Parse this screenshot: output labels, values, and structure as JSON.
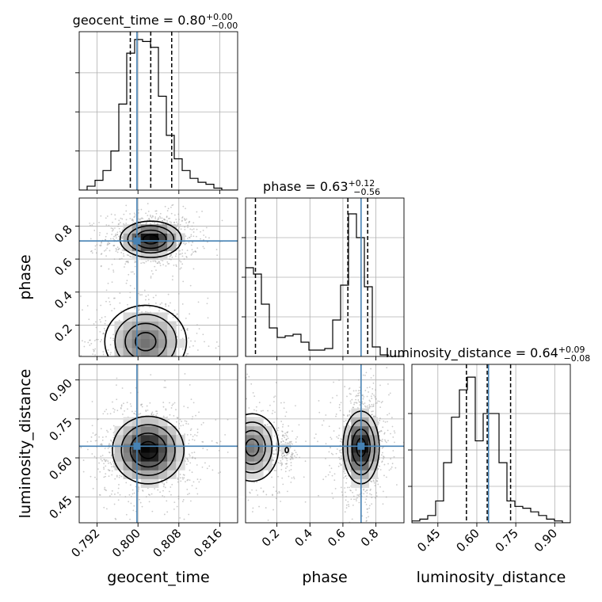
{
  "chart_data": {
    "type": "corner",
    "parameters": [
      {
        "name": "geocent_time",
        "label": "geocent_time",
        "range": [
          0.7885,
          0.8195
        ],
        "ticks": [
          0.792,
          0.8,
          0.808,
          0.816
        ],
        "tick_labels": [
          "0.792",
          "0.800",
          "0.808",
          "0.816"
        ],
        "truth": 0.7998,
        "quantiles": [
          0.7985,
          0.8025,
          0.8066
        ],
        "title": {
          "name": "geocent_time",
          "median": "0.80",
          "plus": "+0.00",
          "minus": "−0.00"
        },
        "hist": {
          "edges_from": 0.7885,
          "bin_width": 0.00155,
          "counts": [
            0,
            2,
            5,
            10,
            20,
            44,
            70,
            77,
            76,
            73,
            48,
            28,
            16,
            10,
            6,
            4,
            3,
            1,
            0,
            0
          ],
          "ymax": 81,
          "yticks": [
            20,
            40,
            60
          ]
        }
      },
      {
        "name": "phase",
        "label": "phase",
        "range": [
          0.01,
          0.97
        ],
        "ticks": [
          0.2,
          0.4,
          0.6,
          0.8
        ],
        "tick_labels": [
          "0.2",
          "0.4",
          "0.6",
          "0.8"
        ],
        "truth": 0.71,
        "quantiles": [
          0.07,
          0.63,
          0.75
        ],
        "title": {
          "name": "phase",
          "median": "0.63",
          "plus": "+0.12",
          "minus": "−0.56"
        },
        "hist": {
          "edges_from": 0.01,
          "bin_width": 0.048,
          "counts": [
            56,
            52,
            33,
            18,
            12,
            13,
            14,
            9,
            4,
            4,
            5,
            23,
            45,
            90,
            75,
            44,
            6,
            1,
            0,
            0
          ],
          "ymax": 100,
          "yticks": [
            25,
            50,
            75
          ]
        }
      },
      {
        "name": "luminosity_distance",
        "label": "luminosity_distance",
        "range": [
          0.35,
          0.96
        ],
        "ticks": [
          0.45,
          0.6,
          0.75,
          0.9
        ],
        "tick_labels": [
          "0.45",
          "0.60",
          "0.75",
          "0.90"
        ],
        "truth": 0.645,
        "quantiles": [
          0.56,
          0.64,
          0.73
        ],
        "title": {
          "name": "luminosity_distance",
          "median": "0.64",
          "plus": "+0.09",
          "minus": "−0.08"
        },
        "hist": {
          "edges_from": 0.35,
          "bin_width": 0.0305,
          "counts": [
            1,
            2,
            4,
            12,
            33,
            58,
            73,
            80,
            45,
            60,
            60,
            33,
            12,
            9,
            8,
            6,
            4,
            2,
            1,
            0
          ],
          "ymax": 87,
          "yticks": [
            20,
            40,
            60
          ]
        }
      }
    ],
    "pairs": [
      {
        "row": 1,
        "col": 0,
        "modes": [
          {
            "cx": 0.8025,
            "cy": 0.72,
            "sx": 0.003,
            "sy": 0.055,
            "w": 1.0
          },
          {
            "cx": 0.8015,
            "cy": 0.1,
            "sx": 0.004,
            "sy": 0.11,
            "w": 0.55
          }
        ]
      },
      {
        "row": 2,
        "col": 0,
        "modes": [
          {
            "cx": 0.802,
            "cy": 0.63,
            "sx": 0.0035,
            "sy": 0.065,
            "w": 1.0
          }
        ]
      },
      {
        "row": 2,
        "col": 1,
        "modes": [
          {
            "cx": 0.71,
            "cy": 0.64,
            "sx": 0.055,
            "sy": 0.07,
            "w": 1.0
          },
          {
            "cx": 0.05,
            "cy": 0.64,
            "sx": 0.08,
            "sy": 0.065,
            "w": 0.55
          },
          {
            "cx": 0.26,
            "cy": 0.63,
            "sx": 0.02,
            "sy": 0.02,
            "w": 0.12
          }
        ]
      }
    ],
    "colors": {
      "truth": "#4682b4",
      "line": "#000000",
      "scatter": "#9e9e9e",
      "grid": "#b0b0b0"
    },
    "grid": true
  }
}
